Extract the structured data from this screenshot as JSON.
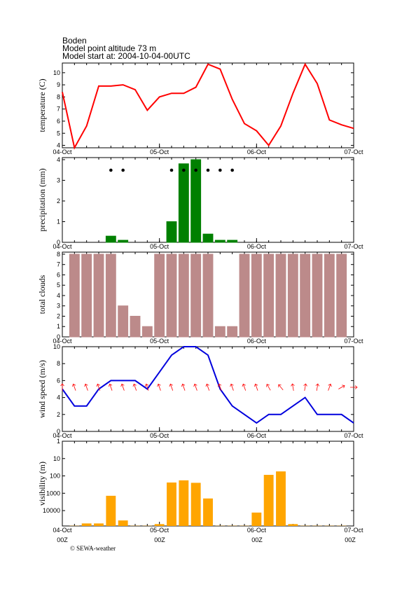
{
  "header": {
    "station": "Boden",
    "altitude": "Model point altitude  73 m",
    "start": "Model start at: 2004-10-04-00UTC"
  },
  "footer": {
    "time_label": "00Z",
    "credit": "© SEWA-weather"
  },
  "chart_data": [
    {
      "type": "line",
      "y_label": "temperature (C)",
      "color": "#ff0000",
      "x": [
        0,
        3,
        6,
        9,
        12,
        15,
        18,
        21,
        24,
        27,
        30,
        33,
        36,
        39,
        42,
        45,
        48,
        51,
        54,
        57,
        60,
        63,
        66,
        69,
        72
      ],
      "xlim": [
        0,
        72
      ],
      "xticks": [
        {
          "value": 0,
          "label": "04-Oct"
        },
        {
          "value": 24,
          "label": "05-Oct"
        },
        {
          "value": 48,
          "label": "06-Oct"
        },
        {
          "value": 72,
          "label": "07-Oct"
        }
      ],
      "ylim": [
        3.8,
        10.8
      ],
      "yticks": [
        4,
        5,
        6,
        7,
        8,
        9,
        10
      ],
      "values": [
        8.4,
        3.8,
        5.6,
        8.9,
        8.9,
        9.0,
        8.6,
        6.9,
        8.0,
        8.3,
        8.3,
        8.8,
        10.7,
        10.3,
        7.8,
        5.8,
        5.2,
        4.0,
        5.6,
        8.3,
        10.7,
        9.1,
        6.1,
        5.7,
        5.4
      ]
    },
    {
      "type": "bar",
      "y_label": "precipitation (mm)",
      "color": "#008000",
      "x": [
        0,
        3,
        6,
        9,
        12,
        15,
        18,
        21,
        24,
        27,
        30,
        33,
        36,
        39,
        42,
        45,
        48,
        51,
        54,
        57,
        60,
        63,
        66,
        69,
        72
      ],
      "xlim": [
        0,
        72
      ],
      "xticks": [
        {
          "value": 0,
          "label": "04-Oct"
        },
        {
          "value": 24,
          "label": "05-Oct"
        },
        {
          "value": 48,
          "label": "06-Oct"
        },
        {
          "value": 72,
          "label": "07-Oct"
        }
      ],
      "ylim": [
        0,
        4.1
      ],
      "yticks": [
        0,
        1,
        2,
        3,
        4
      ],
      "values": [
        0,
        0,
        0,
        0,
        0.3,
        0.1,
        0,
        0,
        0,
        1.0,
        3.8,
        4.0,
        0.4,
        0.1,
        0.1,
        0,
        0,
        0,
        0,
        0,
        0,
        0,
        0,
        0,
        0
      ],
      "dots_x": [
        12,
        15,
        27,
        30,
        33,
        36,
        39,
        42
      ]
    },
    {
      "type": "bar",
      "y_label": "total clouds",
      "color": "#bc8a8a",
      "x": [
        0,
        3,
        6,
        9,
        12,
        15,
        18,
        21,
        24,
        27,
        30,
        33,
        36,
        39,
        42,
        45,
        48,
        51,
        54,
        57,
        60,
        63,
        66,
        69,
        72
      ],
      "xlim": [
        0,
        72
      ],
      "xticks": [
        {
          "value": 0,
          "label": "04-Oct"
        },
        {
          "value": 24,
          "label": "05-Oct"
        },
        {
          "value": 48,
          "label": "06-Oct"
        },
        {
          "value": 72,
          "label": "07-Oct"
        }
      ],
      "ylim": [
        0,
        8.2
      ],
      "yticks": [
        0,
        1,
        2,
        3,
        4,
        5,
        6,
        7,
        8
      ],
      "values": [
        null,
        8,
        8,
        8,
        8,
        3,
        2,
        1,
        8,
        8,
        8,
        8,
        8,
        1,
        1,
        8,
        8,
        8,
        8,
        8,
        8,
        8,
        8,
        8,
        null
      ]
    },
    {
      "type": "line",
      "y_label": "wind speed (m/s)",
      "color": "#0000dd",
      "arrow_color": "#ff0000",
      "x": [
        0,
        3,
        6,
        9,
        12,
        15,
        18,
        21,
        24,
        27,
        30,
        33,
        36,
        39,
        42,
        45,
        48,
        51,
        54,
        57,
        60,
        63,
        66,
        69,
        72
      ],
      "xlim": [
        0,
        72
      ],
      "xticks": [
        {
          "value": 0,
          "label": "04-Oct"
        },
        {
          "value": 24,
          "label": "05-Oct"
        },
        {
          "value": 48,
          "label": "06-Oct"
        },
        {
          "value": 72,
          "label": "07-Oct"
        }
      ],
      "ylim": [
        0,
        10
      ],
      "yticks": [
        0,
        2,
        4,
        6,
        8,
        10
      ],
      "values": [
        5,
        3,
        3,
        5,
        6,
        6,
        6,
        5,
        7,
        9,
        10,
        10,
        9,
        5,
        3,
        2,
        1,
        2,
        2,
        3,
        4,
        2,
        2,
        2,
        1
      ],
      "arrow_angles": [
        0,
        -20,
        -20,
        -20,
        -20,
        -20,
        -20,
        -20,
        -20,
        -20,
        -20,
        -20,
        -20,
        -20,
        -20,
        -20,
        -20,
        -30,
        -40,
        -10,
        10,
        10,
        20,
        60,
        90
      ]
    },
    {
      "type": "bar",
      "y_label": "visibility (m)",
      "color": "#ffa500",
      "log_scale": true,
      "x": [
        0,
        3,
        6,
        9,
        12,
        15,
        18,
        21,
        24,
        27,
        30,
        33,
        36,
        39,
        42,
        45,
        48,
        51,
        54,
        57,
        60,
        63,
        66,
        69,
        72
      ],
      "xlim": [
        0,
        72
      ],
      "xticks": [
        {
          "value": 0,
          "label": "04-Oct"
        },
        {
          "value": 24,
          "label": "05-Oct"
        },
        {
          "value": 48,
          "label": "06-Oct"
        },
        {
          "value": 72,
          "label": "07-Oct"
        }
      ],
      "ylim": [
        77000,
        1
      ],
      "yticks": [
        1,
        10,
        100,
        1000,
        10000
      ],
      "values": [
        null,
        75000,
        55000,
        55000,
        1400,
        37000,
        75000,
        75000,
        60000,
        240,
        180,
        250,
        2000,
        75000,
        75000,
        75000,
        13000,
        87,
        55,
        60000,
        75000,
        75000,
        75000,
        75000,
        null
      ]
    }
  ]
}
